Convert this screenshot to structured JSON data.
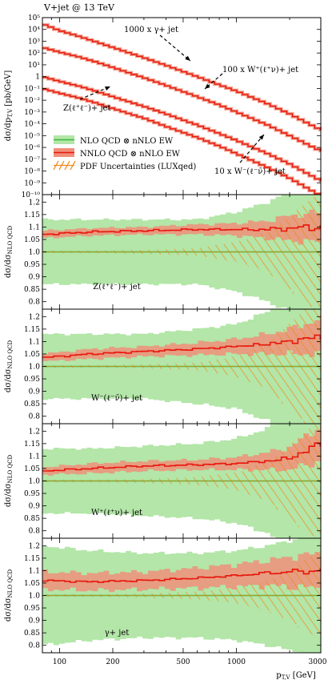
{
  "title": "V+jet @ 13 TeV",
  "colors": {
    "nlo_band": "#b3e6a8",
    "nlo_line": "#3cb83c",
    "nnlo_band": "#ef8f7a",
    "nnlo_line": "#e8160c",
    "pdf": "#f08a1a",
    "frame": "#000000"
  },
  "legend": {
    "nlo": "NLO QCD ⊗ nNLO EW",
    "nnlo": "NNLO QCD ⊗ nNLO EW",
    "pdf": "PDF Uncertainties (LUXqed)"
  },
  "chart_data": [
    {
      "type": "line",
      "panel": "spectra",
      "xscale": "log",
      "yscale": "log",
      "xlim": [
        80,
        3000
      ],
      "ylim": [
        1e-10,
        100000.0
      ],
      "ylabel": "dσ/dp_{T,V} [pb/GeV]",
      "x": [
        80,
        100,
        130,
        160,
        200,
        300,
        400,
        600,
        800,
        1000,
        1500,
        2000,
        3000
      ],
      "series": [
        {
          "name": "1000 x γ+ jet",
          "values": [
            30000,
            8000,
            2500,
            900,
            300,
            40,
            9,
            1,
            0.2,
            0.06,
            0.005,
            0.0007,
            3e-05
          ]
        },
        {
          "name": "100 x W⁺(ℓ⁺ν)+ jet",
          "values": [
            300,
            120,
            45,
            18,
            6,
            0.8,
            0.18,
            0.02,
            0.004,
            0.001,
            8e-05,
            1e-05,
            5e-07
          ]
        },
        {
          "name": "Z(ℓ⁺ℓ⁻)+ jet",
          "values": [
            1,
            0.4,
            0.15,
            0.06,
            0.02,
            0.003,
            0.0007,
            8e-05,
            1.5e-05,
            4e-06,
            3e-07,
            4e-08,
            1.5e-09
          ]
        },
        {
          "name": "10 x W⁻(ℓ⁻ν̄)+ jet",
          "values": [
            0.1,
            0.04,
            0.015,
            0.006,
            0.002,
            0.0003,
            6e-05,
            7e-06,
            1.3e-06,
            3e-07,
            2e-08,
            2.5e-09,
            8e-11
          ]
        }
      ],
      "annotations": [
        "1000 x γ+ jet",
        "100 x W⁺(ℓ⁺ν)+ jet",
        "Z(ℓ⁺ℓ⁻)+ jet",
        "10 x W⁻(ℓ⁻ν̄)+ jet"
      ]
    },
    {
      "type": "line",
      "panel": "ratio",
      "label": "Z(ℓ⁺ℓ⁻)+ jet",
      "ylabel": "dσ/dσ_{NLO QCD}",
      "ylim": [
        0.77,
        1.23
      ],
      "x": [
        80,
        150,
        300,
        600,
        1000,
        1500,
        2000,
        3000
      ],
      "nnlo": [
        1.07,
        1.08,
        1.085,
        1.09,
        1.09,
        1.09,
        1.095,
        1.1
      ],
      "nnlo_unc": [
        0.015,
        0.015,
        0.015,
        0.02,
        0.025,
        0.035,
        0.05,
        0.06
      ],
      "nlo_unc": [
        0.13,
        0.13,
        0.13,
        0.13,
        0.16,
        0.2,
        0.24,
        0.3
      ],
      "pdf_unc": [
        0.005,
        0.005,
        0.008,
        0.015,
        0.04,
        0.08,
        0.15,
        0.25
      ]
    },
    {
      "type": "line",
      "panel": "ratio",
      "label": "W⁻(ℓ⁻ν̄)+ jet",
      "ylabel": "dσ/dσ_{NLO QCD}",
      "ylim": [
        0.77,
        1.23
      ],
      "x": [
        80,
        150,
        300,
        600,
        1000,
        1500,
        2000,
        3000
      ],
      "nnlo": [
        1.035,
        1.05,
        1.06,
        1.07,
        1.08,
        1.09,
        1.1,
        1.12
      ],
      "nnlo_unc": [
        0.015,
        0.02,
        0.02,
        0.025,
        0.03,
        0.04,
        0.05,
        0.07
      ],
      "nlo_unc": [
        0.13,
        0.13,
        0.13,
        0.15,
        0.17,
        0.22,
        0.28,
        0.35
      ],
      "pdf_unc": [
        0.005,
        0.005,
        0.008,
        0.015,
        0.04,
        0.09,
        0.17,
        0.28
      ]
    },
    {
      "type": "line",
      "panel": "ratio",
      "label": "W⁺(ℓ⁺ν)+ jet",
      "ylabel": "dσ/dσ_{NLO QCD}",
      "ylim": [
        0.77,
        1.23
      ],
      "x": [
        80,
        150,
        300,
        600,
        1000,
        1500,
        2000,
        3000
      ],
      "nnlo": [
        1.04,
        1.05,
        1.06,
        1.065,
        1.07,
        1.08,
        1.09,
        1.15
      ],
      "nnlo_unc": [
        0.015,
        0.02,
        0.02,
        0.02,
        0.025,
        0.035,
        0.045,
        0.07
      ],
      "nlo_unc": [
        0.13,
        0.13,
        0.14,
        0.15,
        0.17,
        0.21,
        0.27,
        0.35
      ],
      "pdf_unc": [
        0.005,
        0.005,
        0.008,
        0.015,
        0.035,
        0.08,
        0.15,
        0.25
      ]
    },
    {
      "type": "line",
      "panel": "ratio",
      "label": "γ+ jet",
      "ylabel": "dσ/dσ_{NLO QCD}",
      "ylim": [
        0.77,
        1.23
      ],
      "x": [
        80,
        150,
        300,
        600,
        1000,
        1500,
        2000,
        3000
      ],
      "nnlo": [
        1.06,
        1.055,
        1.06,
        1.07,
        1.08,
        1.09,
        1.095,
        1.1
      ],
      "nnlo_unc": [
        0.035,
        0.035,
        0.035,
        0.04,
        0.045,
        0.05,
        0.06,
        0.07
      ],
      "nlo_unc": [
        0.2,
        0.18,
        0.17,
        0.17,
        0.18,
        0.2,
        0.22,
        0.25
      ],
      "pdf_unc": [
        0.005,
        0.005,
        0.008,
        0.015,
        0.03,
        0.06,
        0.1,
        0.18
      ]
    }
  ],
  "xaxis": {
    "label": "p_{T,V} [GeV]",
    "ticks": [
      100,
      200,
      500,
      1000,
      3000
    ]
  },
  "spectra_yticks": [
    "10⁵",
    "10⁴",
    "10³",
    "10²",
    "10¹",
    "1",
    "10⁻¹",
    "10⁻²",
    "10⁻³",
    "10⁻⁴",
    "10⁻⁵",
    "10⁻⁶",
    "10⁻⁷",
    "10⁻⁸",
    "10⁻⁹",
    "10⁻¹⁰"
  ],
  "ratio_yticks": [
    "1.2",
    "1.15",
    "1.1",
    "1.05",
    "1.0",
    "0.95",
    "0.9",
    "0.85",
    "0.8"
  ],
  "xtick_labels": [
    "100",
    "200",
    "500",
    "1000",
    "3000"
  ],
  "spectra_ylabel_text": "dσ/dp",
  "spectra_ylabel_sub": "T,V",
  "spectra_ylabel_unit": " [pb/GeV]",
  "ratio_ylabel_text": "dσ/dσ",
  "ratio_ylabel_sub": "NLO QCD",
  "xlabel_text": "p",
  "xlabel_sub": "T,V",
  "xlabel_unit": " [GeV]"
}
